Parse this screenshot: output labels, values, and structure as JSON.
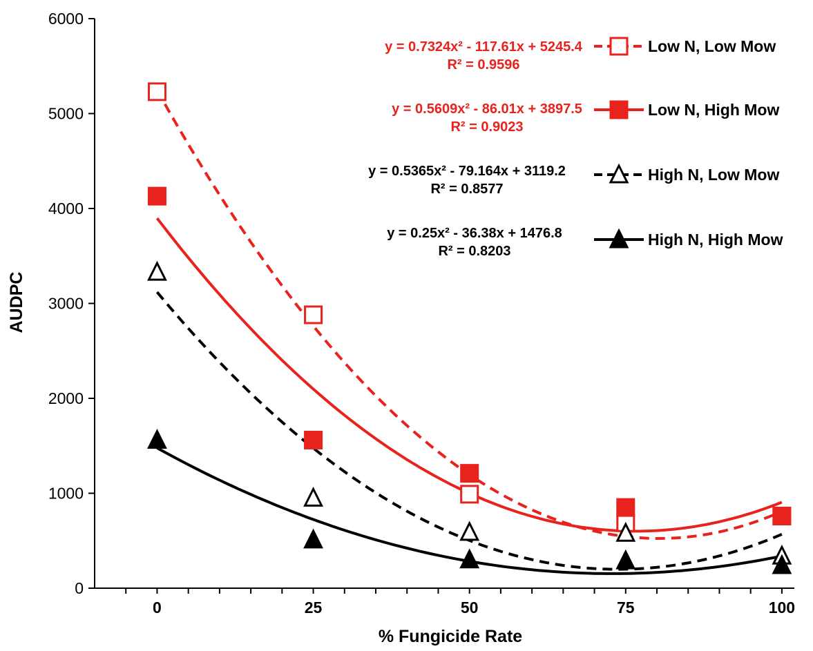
{
  "chart_data": {
    "type": "scatter",
    "title": "",
    "xlabel": "% Fungicide Rate",
    "ylabel": "AUDPC",
    "xlim": [
      -10,
      102
    ],
    "ylim": [
      0,
      6000
    ],
    "x_ticks": [
      "0",
      "25",
      "50",
      "75",
      "100"
    ],
    "y_ticks": [
      "0",
      "1000",
      "2000",
      "3000",
      "4000",
      "5000",
      "6000"
    ],
    "grid": false,
    "legend_position": "top-right",
    "series": [
      {
        "name": "Low N, Low Mow",
        "color": "#e8221c",
        "marker": "open-square",
        "line": "dashed",
        "x": [
          0,
          25,
          50,
          75,
          100
        ],
        "y": [
          5230,
          2880,
          990,
          690,
          760
        ],
        "trend": {
          "a": 0.7324,
          "b": -117.61,
          "c": 5245.4
        },
        "equation": "y = 0.7324x² - 117.61x + 5245.4",
        "r2": "R² = 0.9596"
      },
      {
        "name": "Low N, High Mow",
        "color": "#e8221c",
        "marker": "filled-square",
        "line": "solid",
        "x": [
          0,
          25,
          50,
          75,
          100
        ],
        "y": [
          4130,
          1560,
          1210,
          850,
          760
        ],
        "trend": {
          "a": 0.5609,
          "b": -86.01,
          "c": 3897.5
        },
        "equation": "y = 0.5609x² - 86.01x + 3897.5",
        "r2": "R² = 0.9023"
      },
      {
        "name": "High N, Low Mow",
        "color": "#000000",
        "marker": "open-triangle",
        "line": "dashed",
        "x": [
          0,
          25,
          50,
          75,
          100
        ],
        "y": [
          3330,
          950,
          590,
          580,
          340
        ],
        "trend": {
          "a": 0.5365,
          "b": -79.164,
          "c": 3119.2
        },
        "equation": "y = 0.5365x² - 79.164x + 3119.2",
        "r2": "R² = 0.8577"
      },
      {
        "name": "High N, High Mow",
        "color": "#000000",
        "marker": "filled-triangle",
        "line": "solid",
        "x": [
          0,
          25,
          50,
          75,
          100
        ],
        "y": [
          1560,
          510,
          300,
          290,
          240
        ],
        "trend": {
          "a": 0.25,
          "b": -36.38,
          "c": 1476.8
        },
        "equation": "y = 0.25x² - 36.38x + 1476.8",
        "r2": "R² = 0.8203"
      }
    ]
  }
}
